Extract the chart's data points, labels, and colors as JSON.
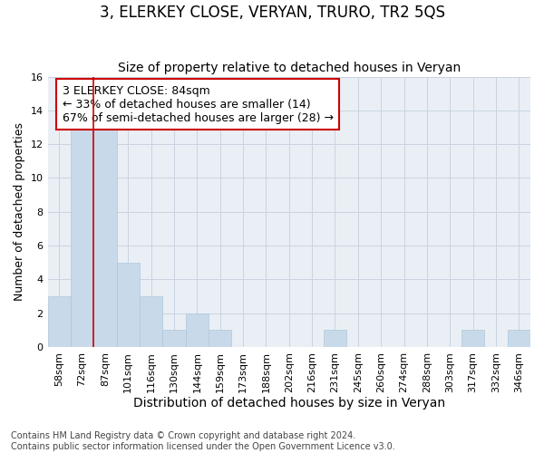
{
  "title": "3, ELERKEY CLOSE, VERYAN, TRURO, TR2 5QS",
  "subtitle": "Size of property relative to detached houses in Veryan",
  "xlabel": "Distribution of detached houses by size in Veryan",
  "ylabel": "Number of detached properties",
  "categories": [
    "58sqm",
    "72sqm",
    "87sqm",
    "101sqm",
    "116sqm",
    "130sqm",
    "144sqm",
    "159sqm",
    "173sqm",
    "188sqm",
    "202sqm",
    "216sqm",
    "231sqm",
    "245sqm",
    "260sqm",
    "274sqm",
    "288sqm",
    "303sqm",
    "317sqm",
    "332sqm",
    "346sqm"
  ],
  "values": [
    3,
    13,
    13,
    5,
    3,
    1,
    2,
    1,
    0,
    0,
    0,
    0,
    1,
    0,
    0,
    0,
    0,
    0,
    1,
    0,
    1
  ],
  "bar_color": "#c8d9ea",
  "bar_edgecolor": "#aec8dc",
  "vline_color": "#cc0000",
  "vline_pos": 1.5,
  "annotation_text": "3 ELERKEY CLOSE: 84sqm\n← 33% of detached houses are smaller (14)\n67% of semi-detached houses are larger (28) →",
  "annotation_box_edgecolor": "#cc0000",
  "ylim": [
    0,
    16
  ],
  "yticks": [
    0,
    2,
    4,
    6,
    8,
    10,
    12,
    14,
    16
  ],
  "grid_color": "#c8d4e0",
  "background_color": "#eaeff5",
  "footer": "Contains HM Land Registry data © Crown copyright and database right 2024.\nContains public sector information licensed under the Open Government Licence v3.0.",
  "title_fontsize": 12,
  "subtitle_fontsize": 10,
  "xlabel_fontsize": 10,
  "ylabel_fontsize": 9,
  "annotation_fontsize": 9,
  "tick_fontsize": 8,
  "footer_fontsize": 7
}
